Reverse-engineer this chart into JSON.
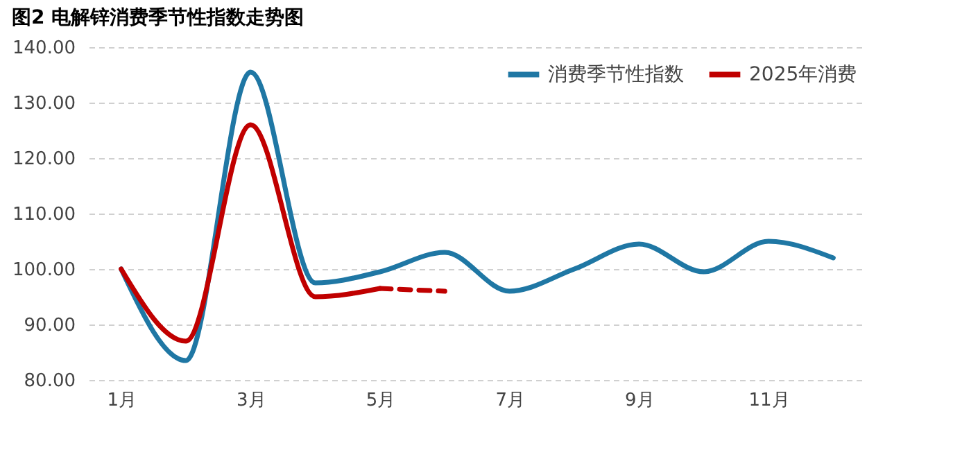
{
  "chart_data": {
    "type": "line",
    "title": "图2 电解锌消费季节性指数走势图",
    "categories": [
      "1月",
      null,
      "3月",
      null,
      "5月",
      null,
      "7月",
      null,
      "9月",
      null,
      "11月",
      null
    ],
    "series": [
      {
        "name": "消费季节性指数",
        "color": "#1f77a4",
        "values": [
          100,
          83.5,
          135.5,
          97.5,
          99.5,
          103,
          96,
          100,
          104.5,
          99.5,
          105,
          102
        ]
      },
      {
        "name": "2025年消费",
        "color": "#c00000",
        "values": [
          100,
          87,
          126,
          95,
          96.5,
          null,
          null,
          null,
          null,
          null,
          null,
          null
        ]
      },
      {
        "color": "#c00000",
        "line_style": "dashed",
        "values": [
          null,
          null,
          null,
          null,
          96.5,
          96,
          null,
          null,
          null,
          null,
          null,
          null
        ]
      }
    ],
    "ylim": [
      80,
      140
    ],
    "yticks": [
      {
        "value": 80,
        "label": "80.00"
      },
      {
        "value": 90,
        "label": "90.00"
      },
      {
        "value": 100,
        "label": "100.00"
      },
      {
        "value": 110,
        "label": "110.00"
      },
      {
        "value": 120,
        "label": "120.00"
      },
      {
        "value": 130,
        "label": "130.00"
      },
      {
        "value": 140,
        "label": "140.00"
      }
    ],
    "grid": "y",
    "legend": "top right"
  }
}
